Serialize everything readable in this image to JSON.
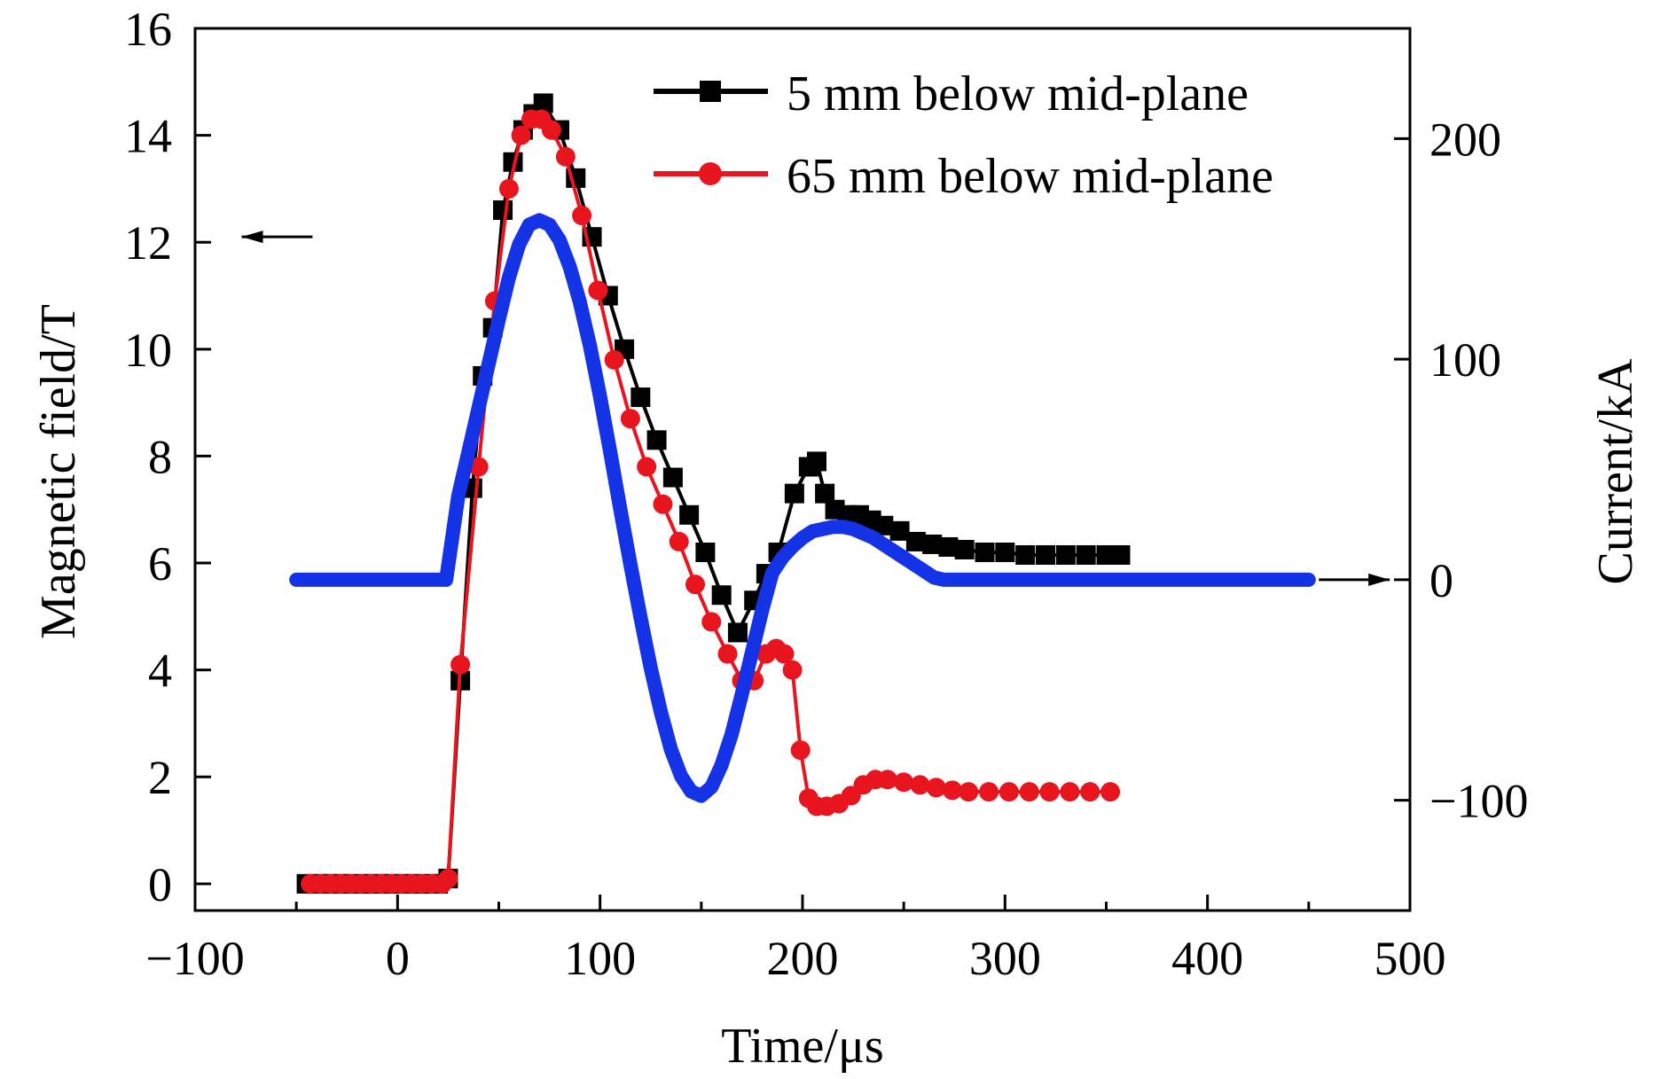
{
  "chart_data": {
    "type": "line",
    "xlabel": "Time/μs",
    "ylabel": "Magnetic field/T",
    "y2label": "Current/kA",
    "xlim": [
      -100,
      500
    ],
    "ylim": [
      -0.5,
      16
    ],
    "y2lim": [
      -150,
      250
    ],
    "xticks": [
      "−100",
      "0",
      "100",
      "200",
      "300",
      "400",
      "500"
    ],
    "xtick_values": [
      -100,
      0,
      100,
      200,
      300,
      400,
      500
    ],
    "yticks": [
      "0",
      "2",
      "4",
      "6",
      "8",
      "10",
      "12",
      "14",
      "16"
    ],
    "ytick_values": [
      0,
      2,
      4,
      6,
      8,
      10,
      12,
      14,
      16
    ],
    "y2ticks": [
      "−100",
      "0",
      "100",
      "200"
    ],
    "y2tick_values": [
      -100,
      0,
      100,
      200
    ],
    "grid": false,
    "legend_position": "top-right",
    "series": [
      {
        "name": "5 mm below mid-plane",
        "axis": "left",
        "color": "#000000",
        "marker": "square",
        "x": [
          -45,
          -40,
          -35,
          -30,
          -25,
          -20,
          -15,
          -10,
          -5,
          0,
          5,
          10,
          15,
          20,
          25,
          31,
          37,
          42,
          47,
          52,
          57,
          62,
          67,
          72,
          80,
          88,
          96,
          104,
          112,
          120,
          128,
          136,
          144,
          152,
          160,
          168,
          176,
          182,
          188,
          196,
          203,
          207,
          211,
          216,
          222,
          228,
          234,
          240,
          248,
          256,
          264,
          272,
          280,
          290,
          300,
          310,
          320,
          330,
          340,
          350,
          357
        ],
        "y": [
          0,
          0,
          0,
          0,
          0,
          0,
          0,
          0,
          0,
          0,
          0,
          0,
          0,
          0,
          0.1,
          3.8,
          7.4,
          9.5,
          10.4,
          12.6,
          13.5,
          14.1,
          14.4,
          14.6,
          14.1,
          13.2,
          12.1,
          11.0,
          10.0,
          9.1,
          8.3,
          7.6,
          6.9,
          6.2,
          5.4,
          4.7,
          5.3,
          5.8,
          6.2,
          7.3,
          7.8,
          7.9,
          7.3,
          7.0,
          6.9,
          6.9,
          6.8,
          6.7,
          6.6,
          6.4,
          6.35,
          6.3,
          6.25,
          6.2,
          6.2,
          6.15,
          6.15,
          6.15,
          6.15,
          6.15,
          6.15
        ]
      },
      {
        "name": "65 mm below mid-plane",
        "axis": "left",
        "color": "#e8141e",
        "marker": "circle",
        "x": [
          -43,
          -38,
          -33,
          -28,
          -23,
          -18,
          -13,
          -8,
          -3,
          2,
          7,
          12,
          17,
          22,
          25,
          31,
          40,
          48,
          55,
          61,
          66,
          71,
          76,
          83,
          91,
          99,
          107,
          115,
          123,
          131,
          139,
          147,
          155,
          163,
          170,
          176,
          182,
          187,
          191,
          195,
          199,
          203,
          207,
          212,
          218,
          224,
          230,
          236,
          242,
          250,
          258,
          266,
          274,
          282,
          292,
          302,
          312,
          322,
          332,
          342,
          352
        ],
        "y": [
          0,
          0,
          0,
          0,
          0,
          0,
          0,
          0,
          0,
          0,
          0,
          0,
          0,
          0,
          0.1,
          4.1,
          7.8,
          10.9,
          13.0,
          14.0,
          14.3,
          14.3,
          14.1,
          13.6,
          12.5,
          11.1,
          9.8,
          8.7,
          7.8,
          7.1,
          6.4,
          5.6,
          4.9,
          4.3,
          3.8,
          3.8,
          4.3,
          4.4,
          4.3,
          4.0,
          2.5,
          1.6,
          1.45,
          1.45,
          1.5,
          1.65,
          1.85,
          1.95,
          1.95,
          1.9,
          1.85,
          1.8,
          1.75,
          1.72,
          1.72,
          1.72,
          1.72,
          1.72,
          1.72,
          1.72,
          1.72
        ]
      },
      {
        "name": "",
        "axis": "right",
        "color": "#1432e6",
        "marker": "dense",
        "x": [
          -50,
          -40,
          -30,
          -20,
          -10,
          0,
          10,
          20,
          24,
          30,
          35,
          40,
          45,
          50,
          55,
          60,
          65,
          70,
          75,
          80,
          85,
          90,
          95,
          100,
          105,
          110,
          115,
          120,
          125,
          130,
          135,
          140,
          145,
          150,
          155,
          160,
          165,
          170,
          175,
          180,
          185,
          190,
          195,
          200,
          205,
          210,
          215,
          220,
          225,
          230,
          235,
          240,
          245,
          250,
          255,
          260,
          265,
          270,
          280,
          300,
          320,
          340,
          360,
          380,
          400,
          420,
          440,
          450
        ],
        "y": [
          0,
          0,
          0,
          0,
          0,
          0,
          0,
          0,
          0,
          38,
          58,
          78,
          98,
          118,
          137,
          152,
          161,
          163,
          161,
          154,
          142,
          126,
          106,
          83,
          58,
          32,
          7,
          -17,
          -40,
          -60,
          -77,
          -89,
          -96,
          -98,
          -94,
          -84,
          -70,
          -52,
          -33,
          -14,
          3,
          10,
          15,
          19,
          22,
          23,
          24,
          24,
          23,
          21,
          19,
          16,
          13,
          10,
          7,
          4,
          1,
          0,
          0,
          0,
          0,
          0,
          0,
          0,
          0,
          0,
          0,
          0
        ]
      }
    ],
    "annotations": [
      {
        "type": "arrow",
        "points_to": "left-axis",
        "at_x": -42,
        "at_y": 12.1,
        "length_x": 35
      },
      {
        "type": "arrow",
        "points_to": "right-axis",
        "at_x": 455,
        "at_y": 0,
        "length_x": 35,
        "axis": "right"
      }
    ]
  }
}
